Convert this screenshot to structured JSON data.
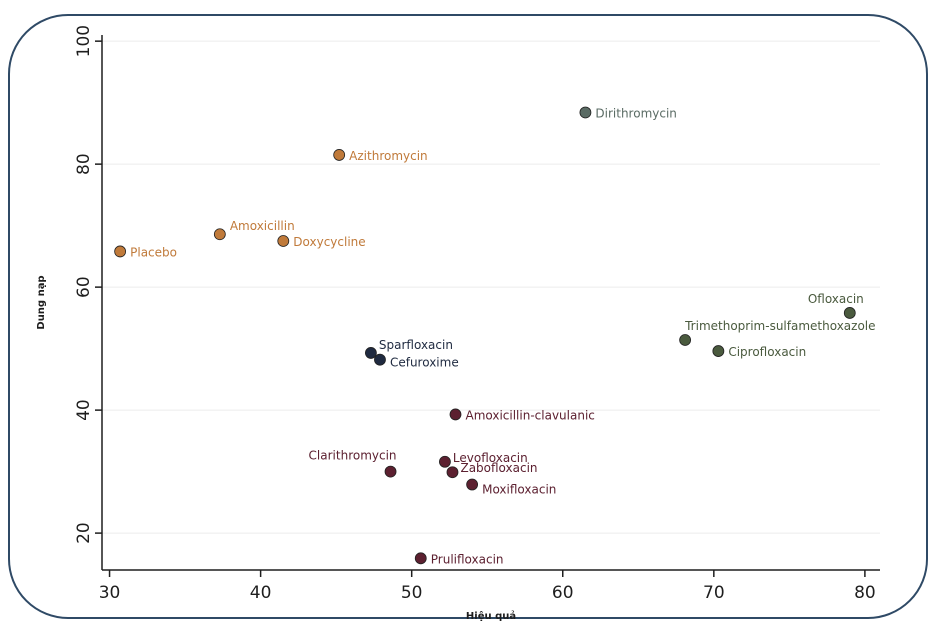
{
  "chart_data": {
    "type": "scatter",
    "title": "",
    "xlabel": "Hiệu quả",
    "ylabel": "Dung nạp",
    "xlim": [
      29.5,
      81
    ],
    "ylim": [
      14,
      101
    ],
    "xticks": [
      30,
      40,
      50,
      60,
      70,
      80
    ],
    "yticks": [
      20,
      40,
      60,
      80,
      100
    ],
    "grid": "horizontal",
    "colors": {
      "orange": "#c07a3a",
      "slate": "#5a6b64",
      "olive": "#4a5a3e",
      "navy": "#1f2a40",
      "maroon": "#5c2030"
    },
    "points": [
      {
        "label": "Placebo",
        "x": 30.7,
        "y": 65.8,
        "color": "orange"
      },
      {
        "label": "Amoxicillin",
        "x": 37.3,
        "y": 68.6,
        "color": "orange"
      },
      {
        "label": "Doxycycline",
        "x": 41.5,
        "y": 67.5,
        "color": "orange"
      },
      {
        "label": "Azithromycin",
        "x": 45.2,
        "y": 81.5,
        "color": "orange"
      },
      {
        "label": "Dirithromycin",
        "x": 61.5,
        "y": 88.4,
        "color": "slate"
      },
      {
        "label": "Ofloxacin",
        "x": 79.0,
        "y": 55.8,
        "color": "olive"
      },
      {
        "label": "Trimethoprim-sulfamethoxazole",
        "x": 68.1,
        "y": 51.4,
        "color": "olive"
      },
      {
        "label": "Ciprofloxacin",
        "x": 70.3,
        "y": 49.6,
        "color": "olive"
      },
      {
        "label": "Sparfloxacin",
        "x": 47.3,
        "y": 49.3,
        "color": "navy"
      },
      {
        "label": "Cefuroxime",
        "x": 47.9,
        "y": 48.2,
        "color": "navy"
      },
      {
        "label": "Amoxicillin-clavulanic",
        "x": 52.9,
        "y": 39.3,
        "color": "maroon"
      },
      {
        "label": "Clarithromycin",
        "x": 48.6,
        "y": 30.0,
        "color": "maroon"
      },
      {
        "label": "Levofloxacin",
        "x": 52.2,
        "y": 31.6,
        "color": "maroon"
      },
      {
        "label": "Zabofloxacin",
        "x": 52.7,
        "y": 29.9,
        "color": "maroon"
      },
      {
        "label": "Moxifloxacin",
        "x": 54.0,
        "y": 27.9,
        "color": "maroon"
      },
      {
        "label": "Prulifloxacin",
        "x": 50.6,
        "y": 15.9,
        "color": "maroon"
      }
    ]
  }
}
